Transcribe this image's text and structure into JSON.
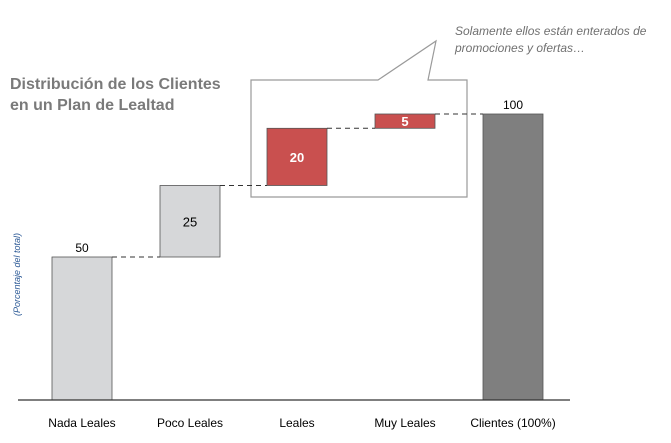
{
  "title_line1": "Distribución de los Clientes",
  "title_line2": "en un Plan de Lealtad",
  "ylabel": "(Porcentaje del total)",
  "callout_line1": "Solamente ellos están enterados de",
  "callout_line2": "promociones y ofertas…",
  "colors": {
    "light_gray": "#d6d7d9",
    "dark_gray": "#7f7f7f",
    "red": "#c9504f",
    "axis": "#333333",
    "title": "#7a7a7a",
    "ylabel": "#2e5b97"
  },
  "chart_data": {
    "type": "bar",
    "subtype": "waterfall",
    "title": "Distribución de los Clientes en un Plan de Lealtad",
    "ylabel": "(Porcentaje del total)",
    "ylim": [
      0,
      100
    ],
    "grid": false,
    "categories": [
      "Nada Leales",
      "Poco Leales",
      "Leales",
      "Muy Leales",
      "Clientes (100%)"
    ],
    "bars": [
      {
        "category": "Nada Leales",
        "base": 0,
        "value": 50,
        "color": "light_gray",
        "label_position": "above"
      },
      {
        "category": "Poco Leales",
        "base": 50,
        "value": 25,
        "color": "light_gray",
        "label_position": "inside"
      },
      {
        "category": "Leales",
        "base": 75,
        "value": 20,
        "color": "red",
        "label_position": "inside"
      },
      {
        "category": "Muy Leales",
        "base": 95,
        "value": 5,
        "color": "red",
        "label_position": "inside"
      },
      {
        "category": "Clientes (100%)",
        "base": 0,
        "value": 100,
        "color": "dark_gray",
        "label_position": "above"
      }
    ],
    "annotation": "Solamente ellos están enterados de promociones y ofertas…"
  }
}
